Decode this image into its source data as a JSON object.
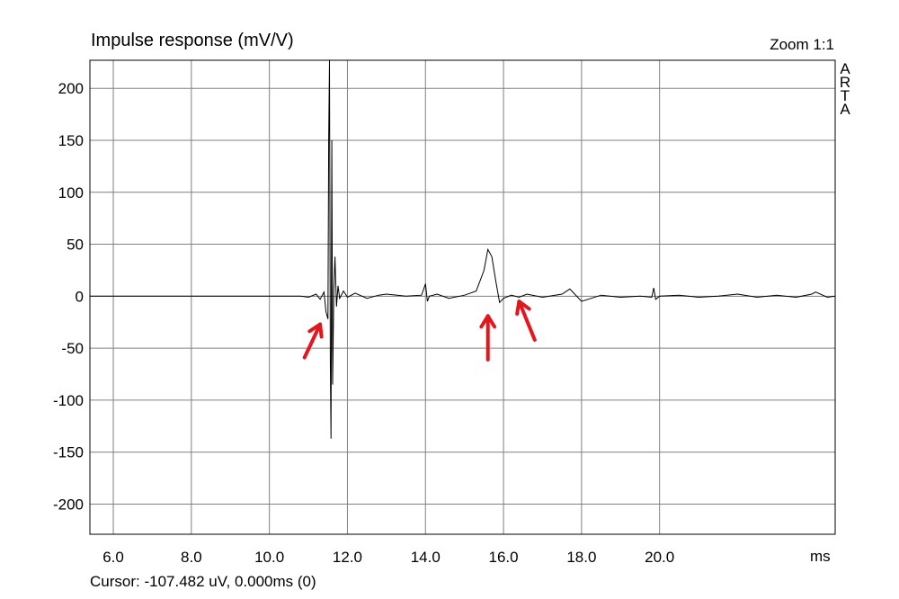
{
  "title": "Impulse response (mV/V)",
  "zoom_label": "Zoom 1:1",
  "brand_letters": [
    "A",
    "R",
    "T",
    "A"
  ],
  "x_unit": "ms",
  "cursor_text": "Cursor: -107.482 uV, 0.000ms (0)",
  "colors": {
    "trace": "#000000",
    "grid": "#808080",
    "arrow": "#e8141b"
  },
  "chart_data": {
    "type": "line",
    "title": "Impulse response (mV/V)",
    "xlabel": "ms",
    "ylabel": "",
    "xlim": [
      5.4,
      24.5
    ],
    "ylim": [
      -229,
      227
    ],
    "grid": true,
    "x_ticks": [
      6.0,
      8.0,
      10.0,
      12.0,
      14.0,
      16.0,
      18.0,
      20.0
    ],
    "x_tick_labels": [
      "6.0",
      "8.0",
      "10.0",
      "12.0",
      "14.0",
      "16.0",
      "18.0",
      "20.0"
    ],
    "y_ticks": [
      200,
      150,
      100,
      50,
      0,
      -50,
      -100,
      -150,
      -200
    ],
    "y_tick_labels": [
      "200",
      "150",
      "100",
      "50",
      "0",
      "-50",
      "-100",
      "-150",
      "-200"
    ],
    "series": [
      {
        "values_note": "",
        "x": [
          5.4,
          10.8,
          11.0,
          11.2,
          11.3,
          11.4,
          11.45,
          11.5,
          11.52,
          11.54,
          11.56,
          11.58,
          11.6,
          11.62,
          11.65,
          11.68,
          11.72,
          11.76,
          11.8,
          11.9,
          12.0,
          12.2,
          12.5,
          12.8,
          13.0,
          13.5,
          13.9,
          14.0,
          14.05,
          14.1,
          14.3,
          14.6,
          15.0,
          15.3,
          15.5,
          15.6,
          15.7,
          15.8,
          15.9,
          16.0,
          16.2,
          16.4,
          16.6,
          17.0,
          17.5,
          17.7,
          17.8,
          18.0,
          18.5,
          19.0,
          19.5,
          19.8,
          19.85,
          19.9,
          20.0,
          20.5,
          21.0,
          21.5,
          22.0,
          22.5,
          23.0,
          23.5,
          23.9,
          24.0,
          24.3,
          24.5
        ],
        "y": [
          0,
          0,
          -1,
          2,
          -3,
          4,
          -15,
          -22,
          150,
          227,
          -60,
          -137,
          150,
          -85,
          5,
          38,
          -10,
          10,
          -2,
          5,
          -1,
          3,
          -2,
          1,
          2,
          0,
          1,
          12,
          -5,
          0,
          2,
          -2,
          1,
          5,
          25,
          45,
          38,
          15,
          -6,
          -2,
          1,
          -1,
          2,
          -1,
          2,
          7,
          3,
          -5,
          1,
          -1,
          0,
          -1,
          8,
          -3,
          0,
          1,
          -1,
          0,
          2,
          -1,
          1,
          -1,
          2,
          4,
          -1,
          0
        ]
      }
    ],
    "annotations": [
      {
        "type": "arrow",
        "x_from": 10.9,
        "y_from": -59,
        "x_to": 11.3,
        "y_to": -27
      },
      {
        "type": "arrow",
        "x_from": 15.6,
        "y_from": -61,
        "x_to": 15.6,
        "y_to": -19
      },
      {
        "type": "arrow",
        "x_from": 16.8,
        "y_from": -42,
        "x_to": 16.4,
        "y_to": -5
      }
    ]
  }
}
